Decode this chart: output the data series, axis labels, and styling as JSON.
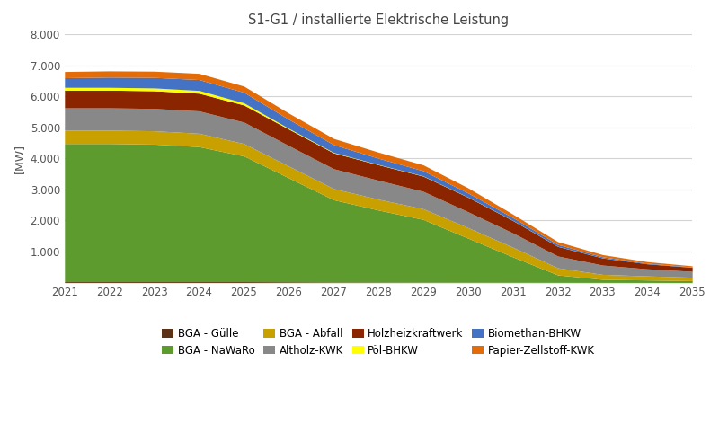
{
  "title": "S1-G1 / installierte Elektrische Leistung",
  "ylabel": "[MW]",
  "years": [
    2021,
    2022,
    2023,
    2024,
    2025,
    2026,
    2027,
    2028,
    2029,
    2030,
    2031,
    2032,
    2033,
    2034,
    2035
  ],
  "ylim": [
    0,
    8000
  ],
  "yticks": [
    0,
    1000,
    2000,
    3000,
    4000,
    5000,
    6000,
    7000,
    8000
  ],
  "series_order": [
    "BGA - Gülle",
    "BGA - NaWaRo",
    "BGA - Abfall",
    "Altholz-KWK",
    "Holzheizkraftwerk",
    "Pöl-BHKW",
    "Biomethan-BHKW",
    "Papier-Zellstoff-KWK"
  ],
  "series": {
    "BGA - Gülle": {
      "color": "#5C3317",
      "values": [
        30,
        30,
        30,
        30,
        30,
        25,
        20,
        18,
        15,
        12,
        10,
        8,
        6,
        5,
        4
      ]
    },
    "BGA - NaWaRo": {
      "color": "#5D9B2F",
      "values": [
        4450,
        4450,
        4430,
        4350,
        4050,
        3350,
        2650,
        2320,
        2020,
        1420,
        820,
        240,
        100,
        80,
        60
      ]
    },
    "BGA - Abfall": {
      "color": "#C8A000",
      "values": [
        430,
        430,
        430,
        430,
        400,
        380,
        360,
        350,
        345,
        340,
        310,
        230,
        160,
        130,
        110
      ]
    },
    "Altholz-KWK": {
      "color": "#888888",
      "values": [
        720,
        720,
        720,
        720,
        690,
        660,
        640,
        610,
        560,
        510,
        460,
        380,
        300,
        230,
        190
      ]
    },
    "Holzheizkraftwerk": {
      "color": "#8B2500",
      "values": [
        570,
        570,
        570,
        570,
        550,
        530,
        510,
        500,
        490,
        470,
        400,
        310,
        230,
        160,
        130
      ]
    },
    "Pöl-BHKW": {
      "color": "#FFFF00",
      "values": [
        90,
        90,
        90,
        90,
        70,
        25,
        15,
        10,
        8,
        6,
        5,
        3,
        2,
        1,
        1
      ]
    },
    "Biomethan-BHKW": {
      "color": "#4472C4",
      "values": [
        310,
        330,
        340,
        350,
        340,
        290,
        250,
        200,
        165,
        130,
        90,
        60,
        35,
        20,
        12
      ]
    },
    "Papier-Zellstoff-KWK": {
      "color": "#E36C09",
      "values": [
        200,
        200,
        200,
        200,
        200,
        200,
        200,
        195,
        190,
        165,
        110,
        90,
        70,
        50,
        35
      ]
    }
  },
  "legend_order": [
    "BGA - Gülle",
    "BGA - NaWaRo",
    "BGA - Abfall",
    "Altholz-KWK",
    "Holzheizkraftwerk",
    "Pöl-BHKW",
    "Biomethan-BHKW",
    "Papier-Zellstoff-KWK"
  ],
  "background_color": "#FFFFFF",
  "grid_color": "#D3D3D3"
}
